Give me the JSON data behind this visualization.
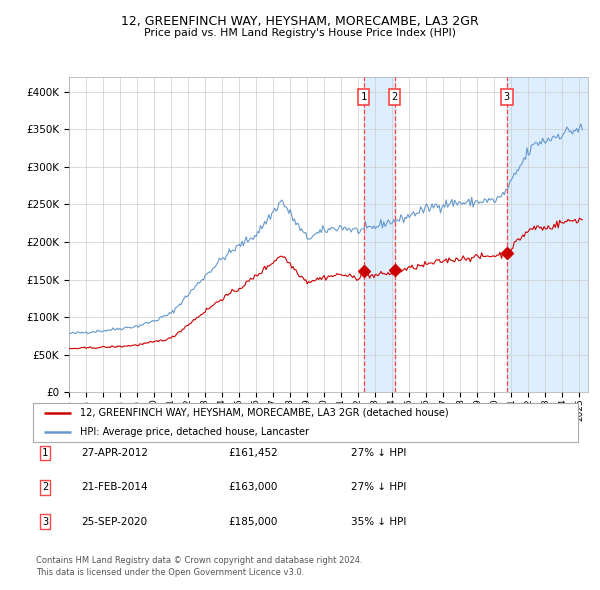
{
  "title1": "12, GREENFINCH WAY, HEYSHAM, MORECAMBE, LA3 2GR",
  "title2": "Price paid vs. HM Land Registry's House Price Index (HPI)",
  "legend_red": "12, GREENFINCH WAY, HEYSHAM, MORECAMBE, LA3 2GR (detached house)",
  "legend_blue": "HPI: Average price, detached house, Lancaster",
  "transactions": [
    {
      "num": 1,
      "date": "27-APR-2012",
      "price": 161452,
      "pct": "27%",
      "dir": "↓"
    },
    {
      "num": 2,
      "date": "21-FEB-2014",
      "price": 163000,
      "pct": "27%",
      "dir": "↓"
    },
    {
      "num": 3,
      "date": "25-SEP-2020",
      "price": 185000,
      "pct": "35%",
      "dir": "↓"
    }
  ],
  "transaction_dates_decimal": [
    2012.32,
    2014.13,
    2020.73
  ],
  "footnote1": "Contains HM Land Registry data © Crown copyright and database right 2024.",
  "footnote2": "This data is licensed under the Open Government Licence v3.0.",
  "red_color": "#cc0000",
  "blue_color": "#6699cc",
  "shade_color": "#ddeeff",
  "dashed_color": "#ff4444",
  "ylim": [
    0,
    420000
  ],
  "yticks": [
    0,
    50000,
    100000,
    150000,
    200000,
    250000,
    300000,
    350000,
    400000
  ],
  "xlim_start": 1995.0,
  "xlim_end": 2025.5
}
